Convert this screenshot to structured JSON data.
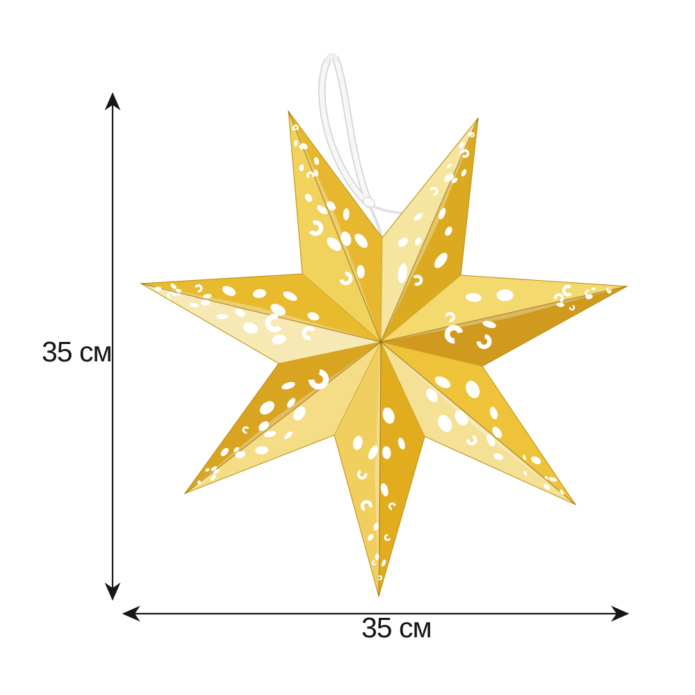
{
  "page": {
    "background_color": "#ffffff"
  },
  "dimension_annotations": {
    "height": {
      "label": "35 см"
    },
    "width": {
      "label": "35 см"
    },
    "line_color": "#161616",
    "label_color": "#161616"
  },
  "product_image": {
    "subject": "gold-paper-star-ornament",
    "star_points": 7,
    "colors": {
      "gold_pale": "#f7e9b4",
      "gold_bright": "#f0cf55",
      "gold_mid": "#e4b22a",
      "gold_deep": "#cf9a1d",
      "edge_gold": "#b98f12",
      "cutout_white": "#ffffff",
      "string_white": "#f7f7f7",
      "string_shadow": "#d4d4d4"
    }
  }
}
